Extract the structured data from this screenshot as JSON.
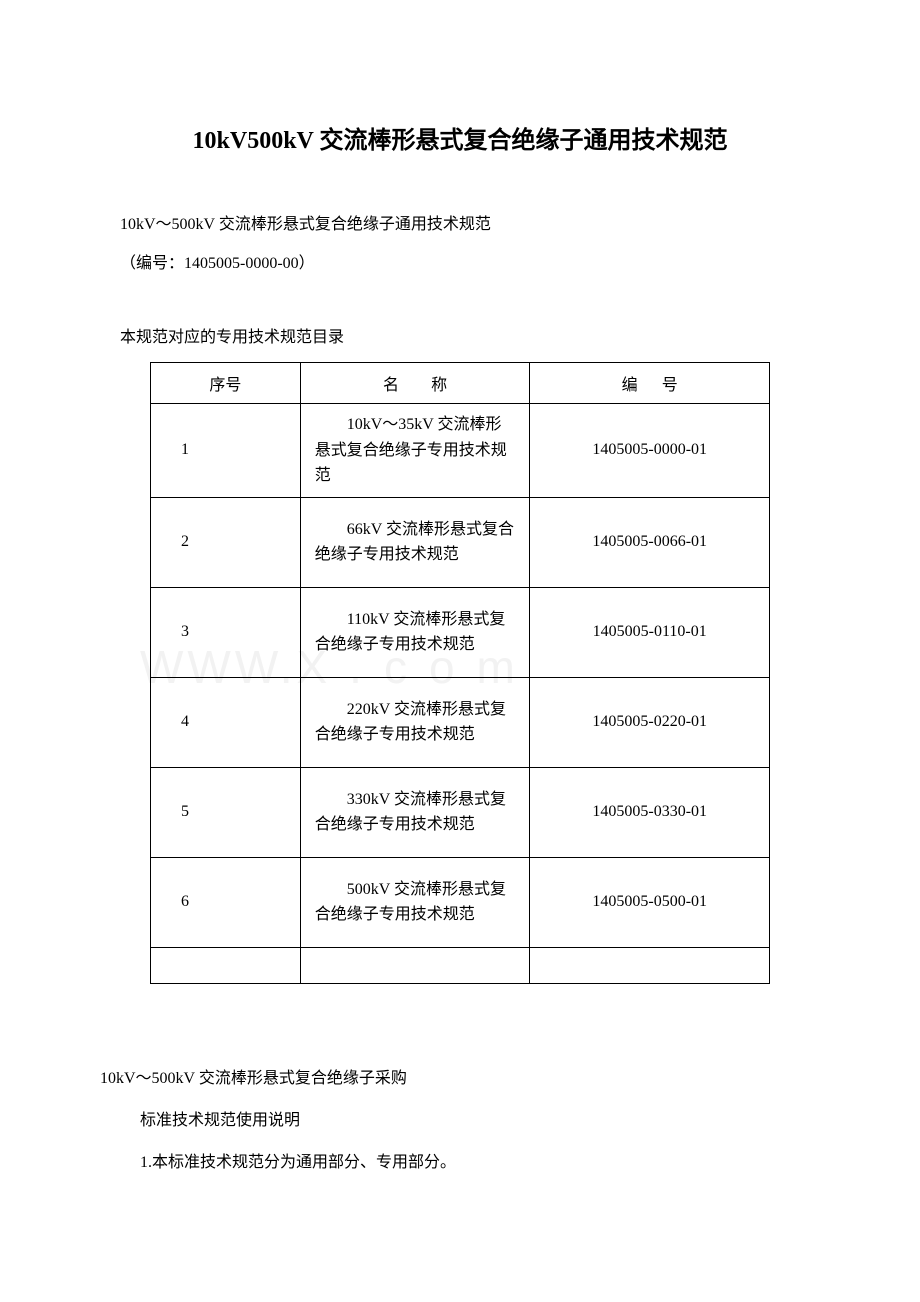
{
  "title": "10kV500kV 交流棒形悬式复合绝缘子通用技术规范",
  "subtitle": "10kV～500kV 交流棒形悬式复合绝缘子通用技术规范",
  "docNumber": "（编号：1405005-0000-00）",
  "tableCaption": "本规范对应的专用技术规范目录",
  "watermark": "WWW.",
  "watermarkEnd": "X.com",
  "table": {
    "headers": {
      "seq": "序号",
      "name": "名",
      "nameSuffix": "称",
      "code": "编",
      "codeSuffix": "号"
    },
    "rows": [
      {
        "seq": "1",
        "name": "10kV～35kV 交流棒形悬式复合绝缘子专用技术规范",
        "code": "1405005-0000-01"
      },
      {
        "seq": "2",
        "name": "66kV 交流棒形悬式复合绝缘子专用技术规范",
        "code": "1405005-0066-01"
      },
      {
        "seq": "3",
        "name": "110kV 交流棒形悬式复合绝缘子专用技术规范",
        "code": "1405005-0110-01"
      },
      {
        "seq": "4",
        "name": "220kV 交流棒形悬式复合绝缘子专用技术规范",
        "code": "1405005-0220-01"
      },
      {
        "seq": "5",
        "name": "330kV 交流棒形悬式复合绝缘子专用技术规范",
        "code": "1405005-0330-01"
      },
      {
        "seq": "6",
        "name": "500kV 交流棒形悬式复合绝缘子专用技术规范",
        "code": "1405005-0500-01"
      }
    ]
  },
  "bottomSection": {
    "line1": "10kV～500kV 交流棒形悬式复合绝缘子采购",
    "line2": "标准技术规范使用说明",
    "line3": "1.本标准技术规范分为通用部分、专用部分。"
  }
}
